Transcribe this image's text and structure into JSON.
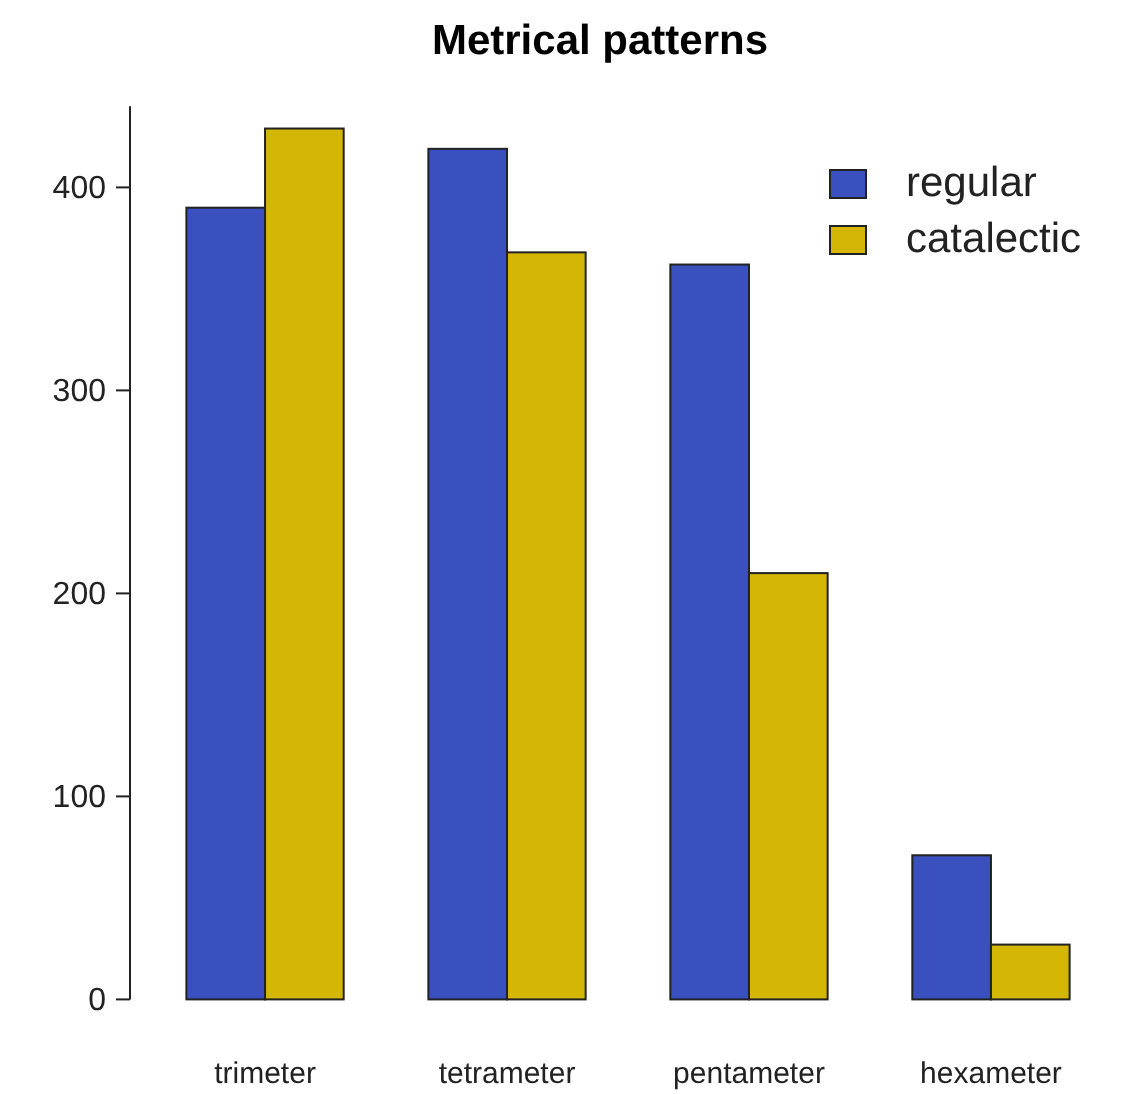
{
  "chart_data": {
    "type": "bar",
    "title": "Metrical patterns",
    "categories": [
      "trimeter",
      "tetrameter",
      "pentameter",
      "hexameter"
    ],
    "series": [
      {
        "name": "regular",
        "color": "#3a50be",
        "values": [
          390,
          419,
          362,
          71
        ]
      },
      {
        "name": "catalectic",
        "color": "#d4b605",
        "values": [
          429,
          368,
          210,
          27
        ]
      }
    ],
    "ylim": [
      0,
      440
    ],
    "yticks": [
      0,
      100,
      200,
      300,
      400
    ],
    "grid": false,
    "legend": "top right"
  }
}
